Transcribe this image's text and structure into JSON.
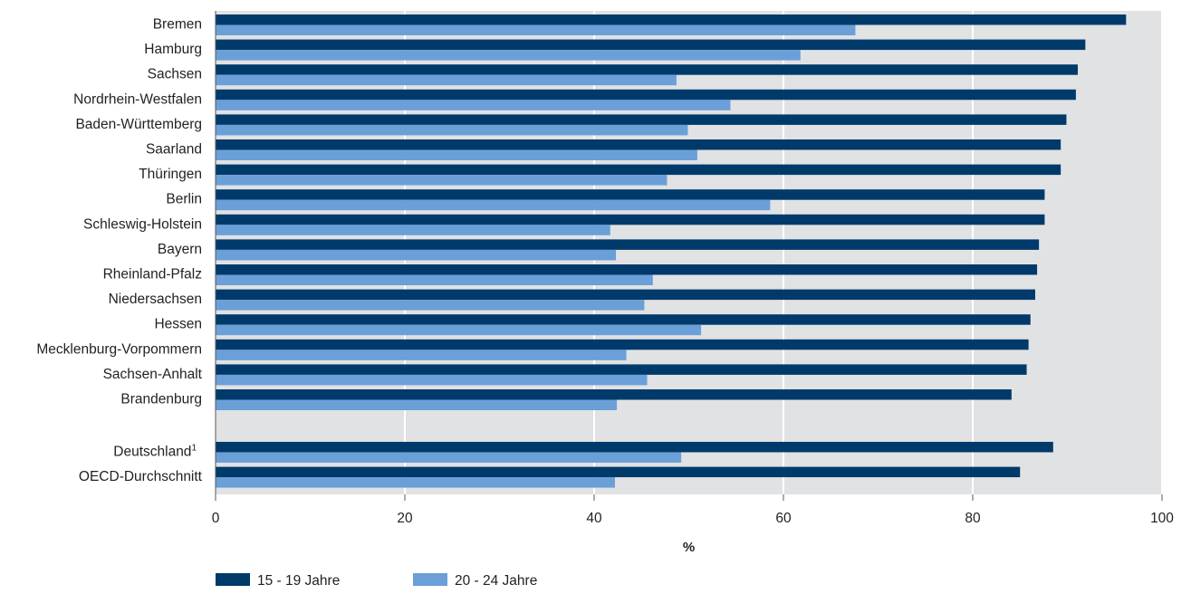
{
  "chart_data": {
    "type": "bar",
    "orientation": "horizontal",
    "categories": [
      "Bremen",
      "Hamburg",
      "Sachsen",
      "Nordrhein-Westfalen",
      "Baden-Württemberg",
      "Saarland",
      "Thüringen",
      "Berlin",
      "Schleswig-Holstein",
      "Bayern",
      "Rheinland-Pfalz",
      "Niedersachsen",
      "Hessen",
      "Mecklenburg-Vorpommern",
      "Sachsen-Anhalt",
      "Brandenburg",
      "Deutschland",
      "OECD-Durchschnitt"
    ],
    "category_superscripts": {
      "Deutschland": "1"
    },
    "group_break_before": "Deutschland",
    "series": [
      {
        "name": "15 - 19 Jahre",
        "color": "#003a6b",
        "values": [
          96.2,
          91.9,
          91.1,
          90.9,
          89.9,
          89.3,
          89.3,
          87.6,
          87.6,
          87.0,
          86.8,
          86.6,
          86.1,
          85.9,
          85.7,
          84.1,
          88.5,
          85.0
        ]
      },
      {
        "name": "20 - 24 Jahre",
        "color": "#6a9fd8",
        "values": [
          67.6,
          61.8,
          48.7,
          54.4,
          49.9,
          50.9,
          47.7,
          58.6,
          41.7,
          42.3,
          46.2,
          45.3,
          51.3,
          43.4,
          45.6,
          42.4,
          49.2,
          42.2
        ]
      }
    ],
    "xlabel": "%",
    "ylabel": "",
    "xlim": [
      0,
      100
    ],
    "xticks": [
      "0",
      "20",
      "40",
      "60",
      "80",
      "100"
    ],
    "grid": true,
    "plot_background": "#e1e2e4",
    "gridline_color": "#ffffff",
    "legend_position": "bottom-left"
  }
}
